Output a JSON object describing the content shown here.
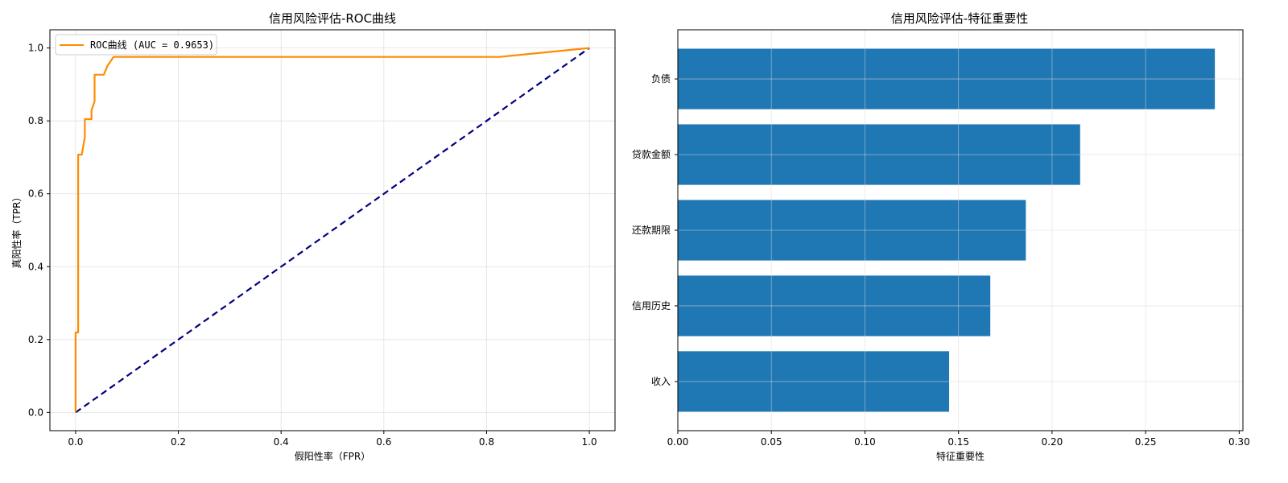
{
  "chart_data": [
    {
      "type": "line",
      "title": "信用风险评估-ROC曲线",
      "xlabel": "假阳性率（FPR）",
      "ylabel": "真阳性率（TPR）",
      "xlim": [
        -0.05,
        1.05
      ],
      "ylim": [
        -0.05,
        1.05
      ],
      "xticks": [
        0.0,
        0.2,
        0.4,
        0.6,
        0.8,
        1.0
      ],
      "yticks": [
        0.0,
        0.2,
        0.4,
        0.6,
        0.8,
        1.0
      ],
      "xtick_labels": [
        "0.0",
        "0.2",
        "0.4",
        "0.6",
        "0.8",
        "1.0"
      ],
      "ytick_labels": [
        "0.0",
        "0.2",
        "0.4",
        "0.6",
        "0.8",
        "1.0"
      ],
      "grid": true,
      "legend_position": "top-left",
      "series": [
        {
          "name": "ROC曲线 (AUC = 0.9653)",
          "color": "#ff8c00",
          "style": "solid",
          "x": [
            0.0,
            0.0,
            0.0,
            0.005,
            0.005,
            0.005,
            0.012,
            0.018,
            0.018,
            0.031,
            0.031,
            0.037,
            0.037,
            0.055,
            0.062,
            0.074,
            0.074,
            0.825,
            1.0
          ],
          "y": [
            0.0,
            0.1463,
            0.2195,
            0.2195,
            0.5122,
            0.7073,
            0.7073,
            0.7561,
            0.8049,
            0.8049,
            0.8293,
            0.8537,
            0.9268,
            0.9268,
            0.9512,
            0.9756,
            0.9756,
            0.9756,
            1.0
          ]
        },
        {
          "name": "",
          "color": "#000080",
          "style": "dashed",
          "x": [
            0.0,
            1.0
          ],
          "y": [
            0.0,
            1.0
          ]
        }
      ]
    },
    {
      "type": "bar",
      "orientation": "horizontal",
      "title": "信用风险评估-特征重要性",
      "xlabel": "特征重要性",
      "ylabel": "",
      "categories": [
        "负债",
        "贷款金额",
        "还款期限",
        "信用历史",
        "收入"
      ],
      "values": [
        0.287,
        0.215,
        0.186,
        0.167,
        0.145
      ],
      "xlim": [
        0.0,
        0.302
      ],
      "xticks": [
        0.0,
        0.05,
        0.1,
        0.15,
        0.2,
        0.25,
        0.3
      ],
      "xtick_labels": [
        "0.00",
        "0.05",
        "0.10",
        "0.15",
        "0.20",
        "0.25",
        "0.30"
      ],
      "grid": true,
      "color": "#1f77b4"
    }
  ]
}
